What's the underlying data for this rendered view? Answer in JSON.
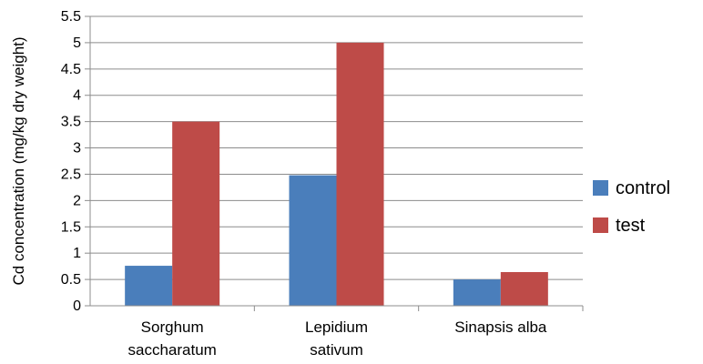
{
  "chart_data": {
    "type": "bar",
    "title": "",
    "xlabel": "",
    "ylabel": "Cd concentration (mg/kg dry weight)",
    "categories": [
      [
        "Sorghum",
        "saccharatum"
      ],
      [
        "Lepidium",
        "sativum"
      ],
      [
        "Sinapsis alba"
      ]
    ],
    "series": [
      {
        "name": "control",
        "color": "#4a7ebb",
        "values": [
          0.76,
          2.48,
          0.5
        ]
      },
      {
        "name": "test",
        "color": "#be4b48",
        "values": [
          3.5,
          5.0,
          0.64
        ]
      }
    ],
    "ylim": [
      0,
      5.5
    ],
    "yticks": [
      "0",
      "0.5",
      "1",
      "1.5",
      "2",
      "2.5",
      "3",
      "3.5",
      "4",
      "4.5",
      "5",
      "5.5"
    ],
    "grid": true,
    "legend_position": "right"
  }
}
